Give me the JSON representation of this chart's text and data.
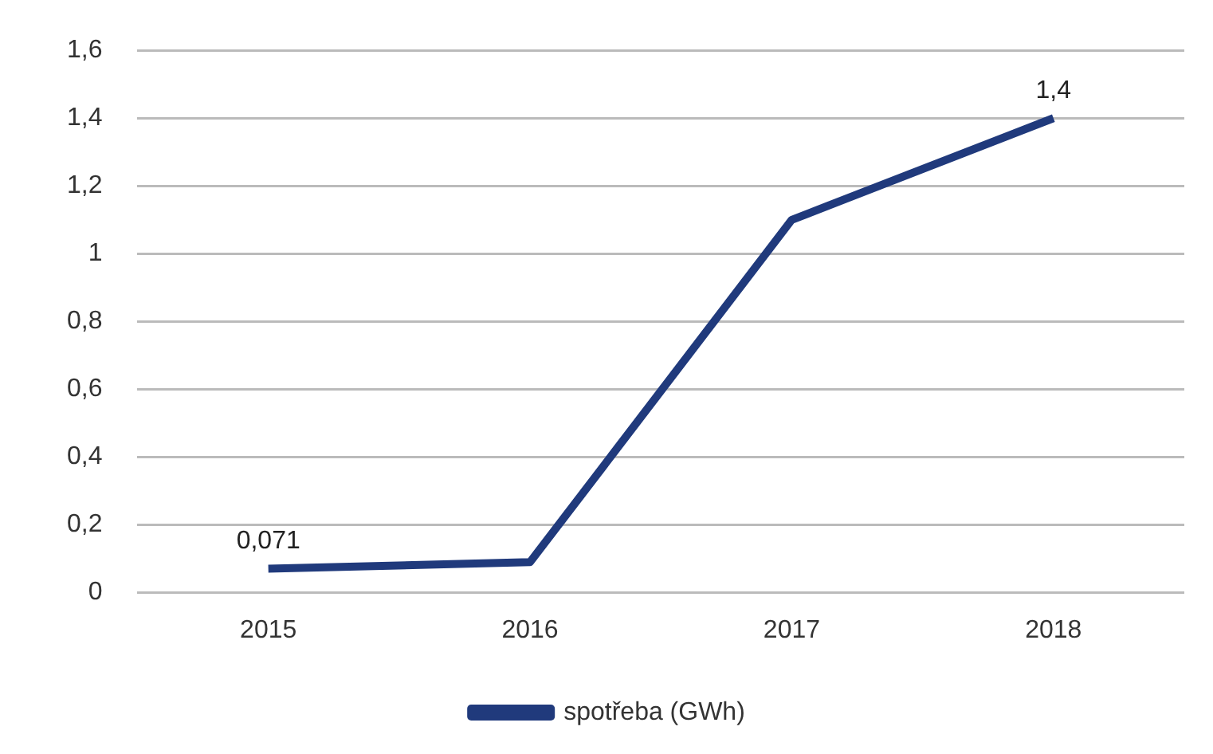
{
  "chart_data": {
    "type": "line",
    "categories": [
      "2015",
      "2016",
      "2017",
      "2018"
    ],
    "series": [
      {
        "name": "spotřeba (GWh)",
        "color": "#203a7c",
        "values": [
          0.071,
          0.09,
          1.1,
          1.4
        ],
        "value_labels": [
          "0,071",
          null,
          null,
          "1,4"
        ]
      }
    ],
    "ylim": [
      0,
      1.6
    ],
    "yticks": [
      {
        "value": 0,
        "label": "0"
      },
      {
        "value": 0.2,
        "label": "0,2"
      },
      {
        "value": 0.4,
        "label": "0,4"
      },
      {
        "value": 0.6,
        "label": "0,6"
      },
      {
        "value": 0.8,
        "label": "0,8"
      },
      {
        "value": 1,
        "label": "1"
      },
      {
        "value": 1.2,
        "label": "1,2"
      },
      {
        "value": 1.4,
        "label": "1,4"
      },
      {
        "value": 1.6,
        "label": "1,6"
      }
    ],
    "grid": "y",
    "legend": "bottom",
    "marker": "none",
    "line_style": "solid"
  }
}
